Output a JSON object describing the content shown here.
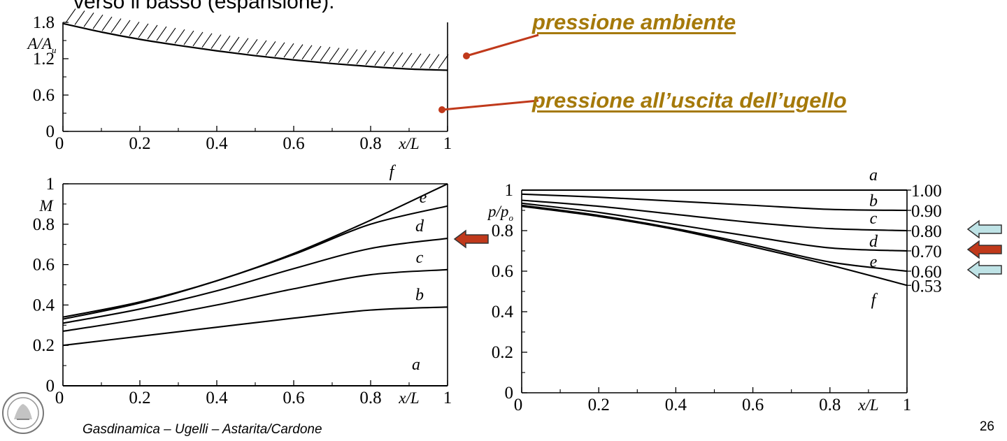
{
  "slide": {
    "top_text": "verso il basso (espansione).",
    "callout_ambient": "pressione ambiente",
    "callout_exit": "pressione all’uscita dell’ugello",
    "footer": "Gasdinamica – Ugelli – Astarita/Cardone",
    "page_number": "26",
    "callout_color": "#a5790a",
    "connector_color": "#c0391b",
    "arrow_fill_red": "#c0391b",
    "arrow_fill_light": "#bfe3e6"
  },
  "chart_data": [
    {
      "type": "line",
      "id": "area",
      "ylabel": "A/A_u",
      "xlabel": "x/L",
      "xlim": [
        0,
        1
      ],
      "ylim": [
        0,
        1.8
      ],
      "x_ticks": [
        "0",
        "0.2",
        "0.4",
        "0.6",
        "0.8",
        "1"
      ],
      "y_ticks": [
        "0",
        "0.6",
        "1.2",
        "1.8"
      ],
      "series": [
        {
          "x": [
            0,
            0.1,
            0.2,
            0.3,
            0.4,
            0.5,
            0.6,
            0.7,
            0.8,
            0.9,
            1.0
          ],
          "y": [
            1.78,
            1.64,
            1.52,
            1.42,
            1.33,
            1.25,
            1.18,
            1.12,
            1.07,
            1.03,
            1.01
          ]
        }
      ],
      "wall_hatching": true
    },
    {
      "type": "line",
      "id": "mach",
      "ylabel": "M",
      "xlabel": "x/L",
      "xlim": [
        0,
        1
      ],
      "ylim": [
        0,
        1
      ],
      "x_ticks": [
        "0",
        "0.2",
        "0.4",
        "0.6",
        "0.8",
        "1"
      ],
      "y_ticks": [
        "0",
        "0.2",
        "0.4",
        "0.6",
        "0.8",
        "1"
      ],
      "series": [
        {
          "name": "a",
          "x": [
            0,
            1
          ],
          "y": [
            0.0,
            0.0
          ]
        },
        {
          "name": "b",
          "x": [
            0,
            0.2,
            0.4,
            0.6,
            0.8,
            1.0
          ],
          "y": [
            0.2,
            0.245,
            0.29,
            0.335,
            0.375,
            0.39
          ]
        },
        {
          "name": "c",
          "x": [
            0,
            0.2,
            0.4,
            0.6,
            0.8,
            1.0
          ],
          "y": [
            0.27,
            0.33,
            0.4,
            0.48,
            0.55,
            0.575
          ]
        },
        {
          "name": "d",
          "x": [
            0,
            0.2,
            0.4,
            0.6,
            0.8,
            1.0
          ],
          "y": [
            0.31,
            0.38,
            0.47,
            0.58,
            0.68,
            0.73
          ]
        },
        {
          "name": "e",
          "x": [
            0,
            0.2,
            0.4,
            0.6,
            0.8,
            1.0
          ],
          "y": [
            0.33,
            0.41,
            0.52,
            0.65,
            0.8,
            0.89
          ]
        },
        {
          "name": "f",
          "x": [
            0,
            0.2,
            0.4,
            0.6,
            0.8,
            1.0
          ],
          "y": [
            0.34,
            0.415,
            0.52,
            0.655,
            0.82,
            1.0
          ]
        }
      ],
      "series_label_positions": [
        "right-inside"
      ]
    },
    {
      "type": "line",
      "id": "pressure",
      "ylabel": "p/p_o",
      "xlabel": "x/L",
      "xlim": [
        0,
        1
      ],
      "ylim": [
        0,
        1
      ],
      "x_ticks": [
        "0",
        "0.2",
        "0.4",
        "0.6",
        "0.8",
        "1"
      ],
      "y_ticks": [
        "0",
        "0.2",
        "0.4",
        "0.6",
        "0.8",
        "1"
      ],
      "right_labels": [
        "1.00",
        "0.90",
        "0.80",
        "0.70",
        "0.60",
        "0.53"
      ],
      "series": [
        {
          "name": "a",
          "x": [
            0,
            1
          ],
          "y": [
            1.0,
            1.0
          ]
        },
        {
          "name": "b",
          "x": [
            0,
            0.2,
            0.4,
            0.6,
            0.8,
            1.0
          ],
          "y": [
            0.98,
            0.965,
            0.945,
            0.925,
            0.905,
            0.9
          ]
        },
        {
          "name": "c",
          "x": [
            0,
            0.2,
            0.4,
            0.6,
            0.8,
            1.0
          ],
          "y": [
            0.95,
            0.92,
            0.88,
            0.84,
            0.81,
            0.8
          ]
        },
        {
          "name": "d",
          "x": [
            0,
            0.2,
            0.4,
            0.6,
            0.8,
            1.0
          ],
          "y": [
            0.935,
            0.89,
            0.83,
            0.77,
            0.715,
            0.7
          ]
        },
        {
          "name": "e",
          "x": [
            0,
            0.2,
            0.4,
            0.6,
            0.8,
            1.0
          ],
          "y": [
            0.925,
            0.875,
            0.81,
            0.73,
            0.645,
            0.6
          ]
        },
        {
          "name": "f",
          "x": [
            0,
            0.2,
            0.4,
            0.6,
            0.8,
            1.0
          ],
          "y": [
            0.92,
            0.87,
            0.805,
            0.72,
            0.63,
            0.53
          ]
        }
      ]
    }
  ]
}
